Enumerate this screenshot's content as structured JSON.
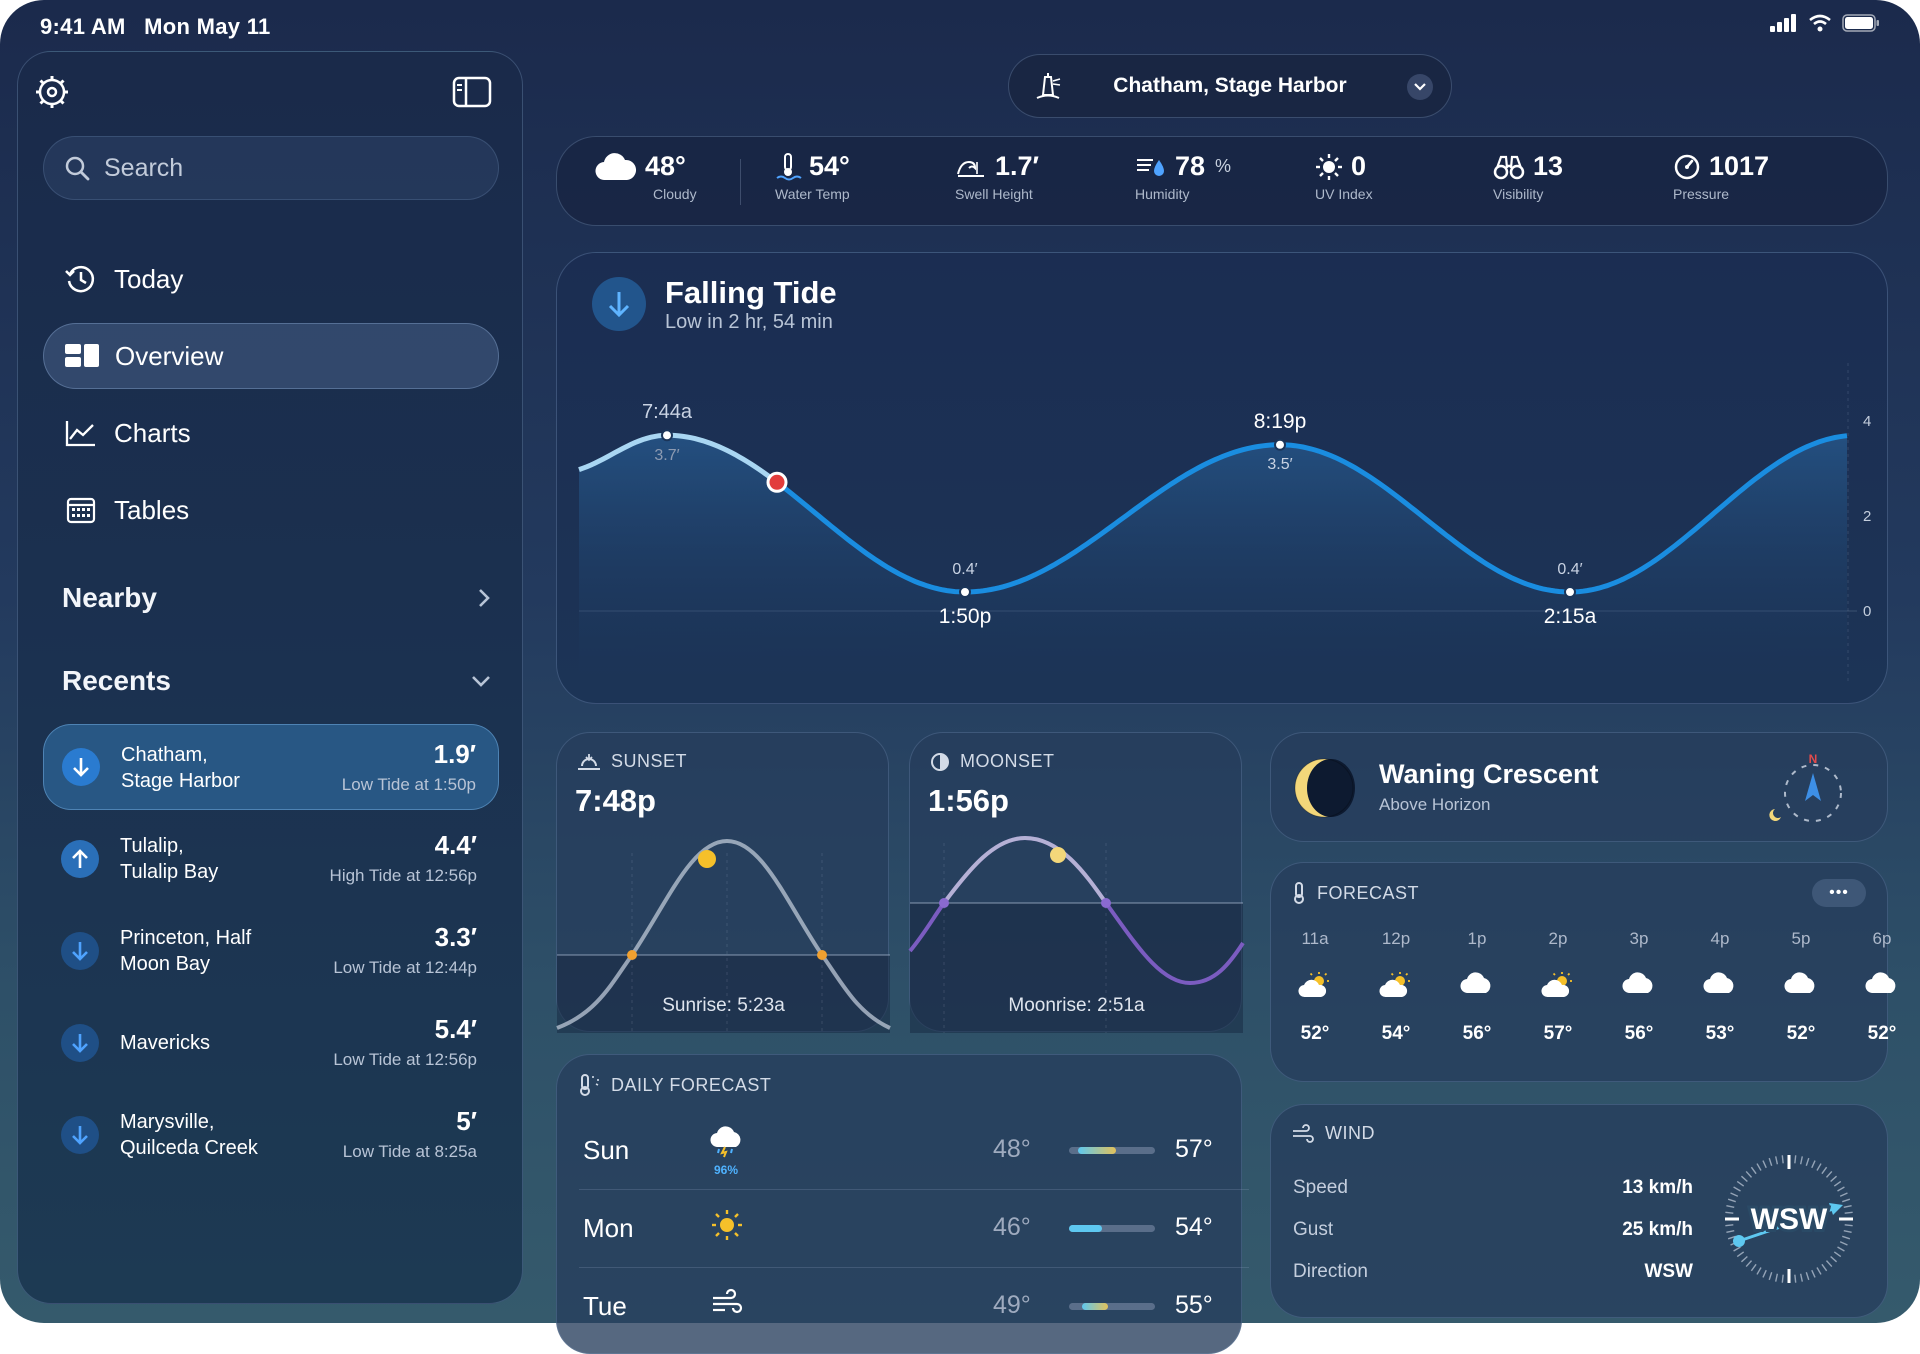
{
  "status": {
    "time": "9:41 AM",
    "date": "Mon May 11"
  },
  "sidebar": {
    "search_placeholder": "Search",
    "nav": [
      {
        "label": "Today",
        "icon": "clock-rewind-icon"
      },
      {
        "label": "Overview",
        "icon": "overview-grid-icon",
        "active": true
      },
      {
        "label": "Charts",
        "icon": "line-chart-icon"
      },
      {
        "label": "Tables",
        "icon": "calendar-table-icon"
      }
    ],
    "nearby_label": "Nearby",
    "recents_label": "Recents",
    "recents": [
      {
        "name1": "Chatham,",
        "name2": "Stage Harbor",
        "value": "1.9′",
        "sub": "Low Tide at 1:50p",
        "direction": "down",
        "active": true
      },
      {
        "name1": "Tulalip,",
        "name2": "Tulalip Bay",
        "value": "4.4′",
        "sub": "High Tide at 12:56p",
        "direction": "up"
      },
      {
        "name1": "Princeton, Half",
        "name2": "Moon Bay",
        "value": "3.3′",
        "sub": "Low Tide at 12:44p",
        "direction": "down"
      },
      {
        "name1": "Mavericks",
        "name2": "",
        "value": "5.4′",
        "sub": "Low Tide at 12:56p",
        "direction": "down"
      },
      {
        "name1": "Marysville,",
        "name2": "Quilceda Creek",
        "value": "5′",
        "sub": "Low Tide at 8:25a",
        "direction": "down"
      }
    ]
  },
  "location": {
    "name": "Chatham, Stage Harbor"
  },
  "conditions": [
    {
      "value": "48°",
      "unit": "",
      "label": "Cloudy",
      "icon": "cloud-icon"
    },
    {
      "value": "54°",
      "unit": "",
      "label": "Water Temp",
      "icon": "water-thermometer-icon"
    },
    {
      "value": "1.7′",
      "unit": "",
      "label": "Swell Height",
      "icon": "swell-icon"
    },
    {
      "value": "78",
      "unit": "%",
      "label": "Humidity",
      "icon": "humidity-icon"
    },
    {
      "value": "0",
      "unit": "",
      "label": "UV Index",
      "icon": "sun-icon"
    },
    {
      "value": "13",
      "unit": "",
      "label": "Visibility",
      "icon": "binoculars-icon"
    },
    {
      "value": "1017",
      "unit": "",
      "label": "Pressure",
      "icon": "gauge-icon"
    }
  ],
  "tide": {
    "title": "Falling Tide",
    "subtitle": "Low in 2 hr, 54 min",
    "y_ticks": [
      "4",
      "2",
      "0"
    ],
    "events": [
      {
        "time": "7:44a",
        "height": "3.7′",
        "type": "high"
      },
      {
        "time": "1:50p",
        "height": "0.4′",
        "type": "low"
      },
      {
        "time": "8:19p",
        "height": "3.5′",
        "type": "high"
      },
      {
        "time": "2:15a",
        "height": "0.4′",
        "type": "low"
      }
    ]
  },
  "sunset": {
    "label": "SUNSET",
    "time": "7:48p",
    "sub": "Sunrise: 5:23a"
  },
  "moonset": {
    "label": "MOONSET",
    "time": "1:56p",
    "sub": "Moonrise: 2:51a"
  },
  "moon": {
    "phase": "Waning Crescent",
    "position": "Above Horizon",
    "compass_n": "N"
  },
  "forecast": {
    "label": "FORECAST",
    "more": "•••",
    "hours": [
      {
        "h": "11a",
        "t": "52°",
        "icon": "partly-sunny-icon"
      },
      {
        "h": "12p",
        "t": "54°",
        "icon": "partly-sunny-icon"
      },
      {
        "h": "1p",
        "t": "56°",
        "icon": "cloud-icon"
      },
      {
        "h": "2p",
        "t": "57°",
        "icon": "partly-sunny-icon"
      },
      {
        "h": "3p",
        "t": "56°",
        "icon": "cloud-icon"
      },
      {
        "h": "4p",
        "t": "53°",
        "icon": "cloud-icon"
      },
      {
        "h": "5p",
        "t": "52°",
        "icon": "cloud-icon"
      },
      {
        "h": "6p",
        "t": "52°",
        "icon": "cloud-icon"
      }
    ]
  },
  "daily": {
    "label": "DAILY FORECAST",
    "days": [
      {
        "day": "Sun",
        "lo": "48°",
        "hi": "57°",
        "precip": "96%",
        "icon": "thunder-rain-icon",
        "bar_start": 0.1,
        "bar_end": 0.55,
        "bar_color": "#e2c15a"
      },
      {
        "day": "Mon",
        "lo": "46°",
        "hi": "54°",
        "precip": "",
        "icon": "sun-icon",
        "bar_start": 0.0,
        "bar_end": 0.38,
        "bar_color": "#5ec8f0"
      },
      {
        "day": "Tue",
        "lo": "49°",
        "hi": "55°",
        "precip": "",
        "icon": "wind-icon",
        "bar_start": 0.15,
        "bar_end": 0.45,
        "bar_color": "#e2c15a"
      }
    ]
  },
  "wind": {
    "label": "WIND",
    "rows": [
      {
        "k": "Speed",
        "v": "13 km/h"
      },
      {
        "k": "Gust",
        "v": "25 km/h"
      },
      {
        "k": "Direction",
        "v": "WSW"
      }
    ],
    "compass_label": "WSW"
  }
}
